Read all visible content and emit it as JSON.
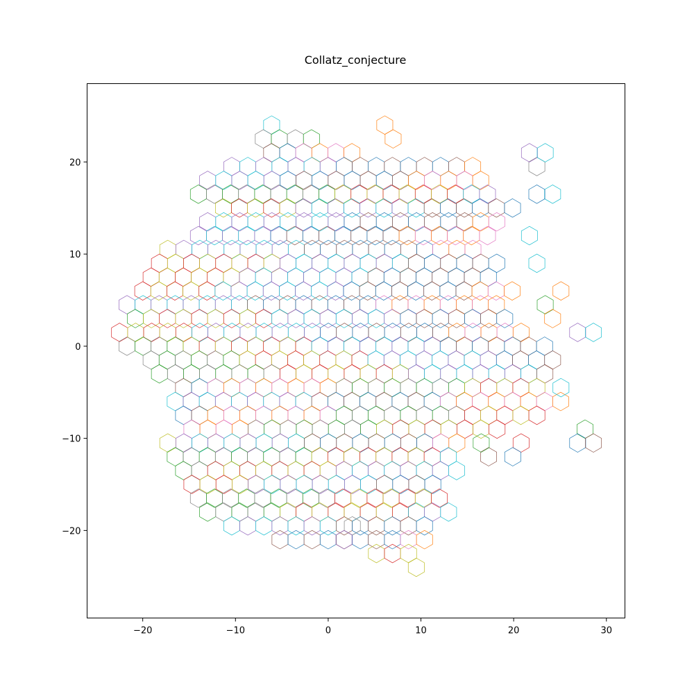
{
  "chart_data": {
    "type": "scatter",
    "title": "Collatz_conjecture",
    "xlabel": "",
    "ylabel": "",
    "xlim": [
      -26,
      32
    ],
    "ylim": [
      -29.5,
      28.5
    ],
    "x_ticks": [
      -20,
      -10,
      0,
      10,
      20,
      30
    ],
    "y_ticks": [
      -20,
      -10,
      0,
      10,
      20
    ],
    "x_tick_labels": [
      "−20",
      "−10",
      "0",
      "10",
      "20",
      "30"
    ],
    "y_tick_labels": [
      "−20",
      "−10",
      "0",
      "10",
      "20"
    ],
    "grid": false,
    "legend": "none",
    "marker": "hexagon outline",
    "hex_radius": 1,
    "palette": [
      "#1f77b4",
      "#ff7f0e",
      "#2ca02c",
      "#d62728",
      "#9467bd",
      "#8c564b",
      "#e377c2",
      "#7f7f7f",
      "#bcbd22",
      "#17becf"
    ],
    "rows": [
      {
        "y": 24,
        "x_start": -6.1,
        "x_end": -6.1
      },
      {
        "y": 22.5,
        "x_start": -7,
        "x_end": -1.7
      },
      {
        "y": 21,
        "x_start": -6.1,
        "x_end": 2.6
      },
      {
        "y": 19.5,
        "x_start": -10.4,
        "x_end": 15.6
      },
      {
        "y": 18,
        "x_start": -13,
        "x_end": 17.3
      },
      {
        "y": 16.5,
        "x_start": -14,
        "x_end": 18.2
      },
      {
        "y": 15,
        "x_start": -11.3,
        "x_end": 20.8
      },
      {
        "y": 13.5,
        "x_start": -13,
        "x_end": 18.2
      },
      {
        "y": 12,
        "x_start": -14,
        "x_end": 17.3
      },
      {
        "y": 10.5,
        "x_start": -17.3,
        "x_end": 16.5
      },
      {
        "y": 9,
        "x_start": -18.2,
        "x_end": 19.1
      },
      {
        "y": 7.5,
        "x_start": -19.1,
        "x_end": 17.3
      },
      {
        "y": 6,
        "x_start": -20,
        "x_end": 20
      },
      {
        "y": 4.5,
        "x_start": -21.7,
        "x_end": 19.1
      },
      {
        "y": 3,
        "x_start": -20.8,
        "x_end": 20
      },
      {
        "y": 1.5,
        "x_start": -22.5,
        "x_end": 22.5
      },
      {
        "y": 0,
        "x_start": -21.7,
        "x_end": 23.4
      },
      {
        "y": -1.5,
        "x_start": -19.1,
        "x_end": 24.2
      },
      {
        "y": -3,
        "x_start": -18.2,
        "x_end": 23.4
      },
      {
        "y": -4.5,
        "x_start": -15.6,
        "x_end": 22.5
      },
      {
        "y": -6,
        "x_start": -16.5,
        "x_end": 25.1
      },
      {
        "y": -7.5,
        "x_start": -15.6,
        "x_end": 22.5
      },
      {
        "y": -9,
        "x_start": -14.7,
        "x_end": 18.2
      },
      {
        "y": -10.5,
        "x_start": -17.3,
        "x_end": 14.7
      },
      {
        "y": -12,
        "x_start": -16.5,
        "x_end": 13
      },
      {
        "y": -13.5,
        "x_start": -15.6,
        "x_end": 13.9
      },
      {
        "y": -15,
        "x_start": -14.7,
        "x_end": 13
      },
      {
        "y": -16.5,
        "x_start": -14,
        "x_end": 12.1
      },
      {
        "y": -18,
        "x_start": -13,
        "x_end": 13
      },
      {
        "y": -19.5,
        "x_start": -10.4,
        "x_end": 12.1
      },
      {
        "y": -21,
        "x_start": -5.2,
        "x_end": 10.4
      },
      {
        "y": -22.5,
        "x_start": 5.2,
        "x_end": 9.5
      },
      {
        "y": -24,
        "x_start": 9.5,
        "x_end": 9.5
      }
    ],
    "outlier_cells": [
      {
        "x": 22.5,
        "y": 19.5
      },
      {
        "x": 21.7,
        "y": 21
      },
      {
        "x": 23.4,
        "y": 21
      },
      {
        "x": 24.2,
        "y": 16.5
      },
      {
        "x": 22.5,
        "y": 16.5
      },
      {
        "x": 21.7,
        "y": 12
      },
      {
        "x": 22.5,
        "y": 9
      },
      {
        "x": 25.1,
        "y": 6
      },
      {
        "x": 23.4,
        "y": 4.5
      },
      {
        "x": 24.2,
        "y": 3
      },
      {
        "x": 26.9,
        "y": 1.5
      },
      {
        "x": 28.6,
        "y": 1.5
      },
      {
        "x": 25.1,
        "y": -4.5
      },
      {
        "x": 27.7,
        "y": -9
      },
      {
        "x": 26.9,
        "y": -10.5
      },
      {
        "x": 28.6,
        "y": -10.5
      },
      {
        "x": 20.8,
        "y": -10.5
      },
      {
        "x": 19.9,
        "y": -12
      },
      {
        "x": 17.3,
        "y": -12
      },
      {
        "x": 16.5,
        "y": -10.5
      },
      {
        "x": 6.1,
        "y": 24
      },
      {
        "x": 7,
        "y": 22.5
      },
      {
        "x": 2.6,
        "y": -19.5
      },
      {
        "x": 1.7,
        "y": -21
      }
    ]
  }
}
